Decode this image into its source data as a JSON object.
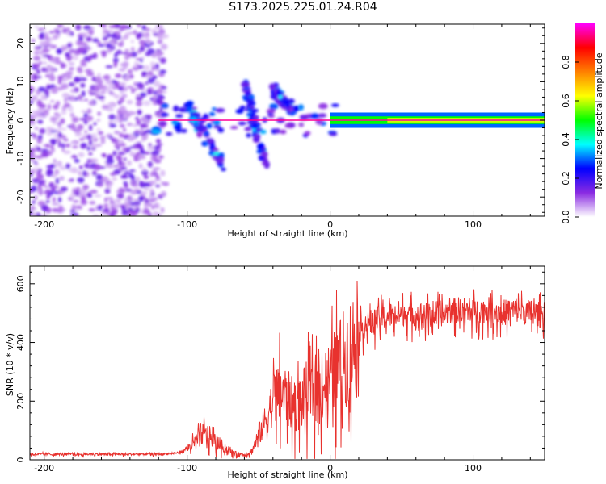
{
  "title": "S173.2025.225.01.24.R04",
  "chart_data": [
    {
      "type": "heatmap",
      "title": "S173.2025.225.01.24.R04",
      "xlabel": "Height of straight line (km)",
      "ylabel": "Frequency (Hz)",
      "xlim": [
        -210,
        150
      ],
      "ylim": [
        -25,
        25
      ],
      "xticks": [
        -200,
        -100,
        0,
        100
      ],
      "xtick_labels": [
        "-200",
        "-100",
        "0",
        "100"
      ],
      "yticks": [
        -20,
        -10,
        0,
        10,
        20
      ],
      "ytick_labels": [
        "-20",
        "-10",
        "0",
        "10",
        "20"
      ],
      "colorbar": {
        "label": "Normalized spectral amplitude",
        "range": [
          0.0,
          1.0
        ],
        "ticks": [
          0.0,
          0.2,
          0.4,
          0.6,
          0.8
        ],
        "tick_labels": [
          "0.0",
          "0.2",
          "0.4",
          "0.6",
          "0.8"
        ],
        "colormap": [
          "#ffffff",
          "#8a2be2",
          "#0000ff",
          "#00ffff",
          "#00ff00",
          "#ffff00",
          "#ff8000",
          "#ff0000",
          "#ff00ff"
        ]
      },
      "features": [
        {
          "name": "noise region",
          "x_range": [
            -210,
            -115
          ],
          "freq_range": [
            -25,
            25
          ],
          "amplitude": 0.1
        },
        {
          "name": "tone line",
          "x_range": [
            -120,
            150
          ],
          "freq_hz": 0.0,
          "amplitude": 0.95
        },
        {
          "name": "descending trace 1",
          "x_start": -100,
          "x_end": -75,
          "freq_start": 4,
          "freq_end": -12,
          "amplitude": 0.3
        },
        {
          "name": "descending trace 2",
          "x_start": -60,
          "x_end": -45,
          "freq_start": 10,
          "freq_end": -12,
          "amplitude": 0.3
        },
        {
          "name": "descending trace 3",
          "x_start": -40,
          "x_end": -25,
          "freq_start": 8,
          "freq_end": 2,
          "amplitude": 0.3
        }
      ]
    },
    {
      "type": "line",
      "xlabel": "Height of straight line (km)",
      "ylabel": "SNR (10 * v/v)",
      "xlim": [
        -210,
        150
      ],
      "ylim": [
        0,
        660
      ],
      "xticks": [
        -200,
        -100,
        0,
        100
      ],
      "xtick_labels": [
        "-200",
        "-100",
        "0",
        "100"
      ],
      "yticks": [
        0,
        200,
        400,
        600
      ],
      "ytick_labels": [
        "0",
        "200",
        "400",
        "600"
      ],
      "color": "#e8322e",
      "series": [
        {
          "name": "SNR",
          "x": [
            -210,
            -180,
            -150,
            -120,
            -105,
            -95,
            -90,
            -85,
            -80,
            -75,
            -70,
            -65,
            -60,
            -55,
            -50,
            -45,
            -40,
            -35,
            -30,
            -25,
            -20,
            -15,
            -10,
            -5,
            0,
            5,
            10,
            15,
            20,
            25,
            30,
            35,
            40,
            50,
            60,
            70,
            80,
            90,
            100,
            110,
            120,
            130,
            140,
            150
          ],
          "values": [
            20,
            20,
            20,
            20,
            25,
            60,
            100,
            90,
            70,
            50,
            30,
            20,
            20,
            30,
            90,
            150,
            220,
            260,
            230,
            200,
            220,
            260,
            250,
            280,
            300,
            350,
            380,
            420,
            450,
            470,
            480,
            490,
            500,
            510,
            505,
            500,
            510,
            520,
            515,
            520,
            510,
            520,
            510,
            500
          ]
        }
      ]
    }
  ]
}
